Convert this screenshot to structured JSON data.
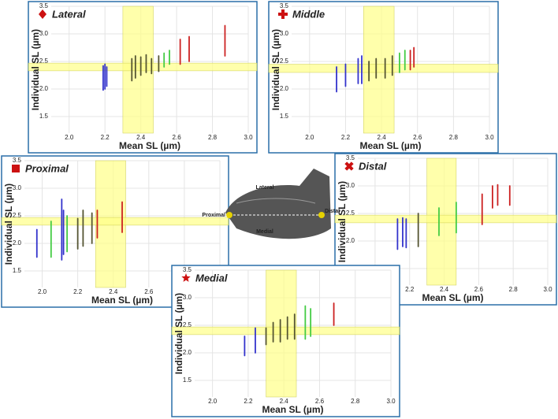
{
  "chart_data": [
    {
      "type": "range",
      "title": "Lateral",
      "marker": "diamond",
      "xlabel": "Mean SL (µm)",
      "ylabel": "Individual SL (µm)",
      "xlim": [
        1.9,
        3.0
      ],
      "ylim": [
        1.2,
        3.5
      ],
      "grid": true,
      "xticks": [
        {
          "value": 2,
          "label": "2.0"
        },
        2.2,
        2.4,
        2.6,
        2.8,
        {
          "value": 3,
          "label": "3.0"
        }
      ],
      "yticks": [
        1.5,
        {
          "value": 2,
          "label": "2.0"
        },
        2.5,
        {
          "value": 3,
          "label": "3.0"
        },
        3.5
      ],
      "xband": [
        2.3,
        2.47
      ],
      "yband": [
        2.33,
        2.47
      ],
      "series": [
        {
          "color": "#3333cc",
          "x": [
            2.19,
            2.2,
            2.21
          ],
          "low": [
            1.98,
            2.0,
            2.05
          ],
          "high": [
            2.42,
            2.45,
            2.4
          ]
        },
        {
          "color": "#555533",
          "x": [
            2.35,
            2.37,
            2.4,
            2.43,
            2.46,
            2.5
          ],
          "low": [
            2.15,
            2.2,
            2.25,
            2.3,
            2.28,
            2.32
          ],
          "high": [
            2.55,
            2.6,
            2.58,
            2.62,
            2.55,
            2.6
          ]
        },
        {
          "color": "#44cc44",
          "x": [
            2.53,
            2.56
          ],
          "low": [
            2.4,
            2.45
          ],
          "high": [
            2.65,
            2.7
          ]
        },
        {
          "color": "#cc2222",
          "x": [
            2.62,
            2.67,
            2.87
          ],
          "low": [
            2.45,
            2.5,
            2.6
          ],
          "high": [
            2.9,
            2.95,
            3.15
          ]
        }
      ]
    },
    {
      "type": "range",
      "title": "Middle",
      "marker": "plus",
      "xlabel": "Mean SL (µm)",
      "ylabel": "Individual SL (µm)",
      "xlim": [
        1.9,
        3.0
      ],
      "ylim": [
        1.2,
        3.5
      ],
      "grid": true,
      "xticks": [
        {
          "value": 2,
          "label": "2.0"
        },
        2.2,
        2.4,
        2.6,
        2.8,
        {
          "value": 3,
          "label": "3.0"
        }
      ],
      "yticks": [
        1.5,
        {
          "value": 2,
          "label": "2.0"
        },
        2.5,
        {
          "value": 3,
          "label": "3.0"
        },
        3.5
      ],
      "xband": [
        2.3,
        2.47
      ],
      "yband": [
        2.3,
        2.45
      ],
      "series": [
        {
          "color": "#3333cc",
          "x": [
            2.15,
            2.2,
            2.27,
            2.29
          ],
          "low": [
            1.95,
            2.05,
            2.1,
            2.1
          ],
          "high": [
            2.4,
            2.45,
            2.55,
            2.6
          ]
        },
        {
          "color": "#555533",
          "x": [
            2.33,
            2.37,
            2.42,
            2.46
          ],
          "low": [
            2.15,
            2.2,
            2.2,
            2.25
          ],
          "high": [
            2.5,
            2.55,
            2.55,
            2.6
          ]
        },
        {
          "color": "#44cc44",
          "x": [
            2.5,
            2.53
          ],
          "low": [
            2.3,
            2.35
          ],
          "high": [
            2.65,
            2.7
          ]
        },
        {
          "color": "#cc2222",
          "x": [
            2.56,
            2.58
          ],
          "low": [
            2.35,
            2.4
          ],
          "high": [
            2.7,
            2.75
          ]
        }
      ]
    },
    {
      "type": "range",
      "title": "Proximal",
      "marker": "square",
      "xlabel": "Mean SL (µm)",
      "ylabel": "Individual SL (µm)",
      "xlim": [
        1.9,
        3.0
      ],
      "ylim": [
        1.2,
        3.5
      ],
      "grid": true,
      "xticks": [
        {
          "value": 2,
          "label": "2.0"
        },
        2.2,
        2.4,
        2.6,
        2.8,
        {
          "value": 3,
          "label": "3.0"
        }
      ],
      "yticks": [
        1.5,
        {
          "value": 2,
          "label": "2.0"
        },
        2.5,
        {
          "value": 3,
          "label": "3.0"
        },
        3.5
      ],
      "xband": [
        2.3,
        2.47
      ],
      "yband": [
        2.33,
        2.47
      ],
      "series": [
        {
          "color": "#3333cc",
          "x": [
            1.97,
            2.11,
            2.12
          ],
          "low": [
            1.75,
            1.7,
            1.8
          ],
          "high": [
            2.25,
            2.8,
            2.6
          ]
        },
        {
          "color": "#44cc44",
          "x": [
            2.05,
            2.14
          ],
          "low": [
            1.75,
            1.85
          ],
          "high": [
            2.4,
            2.5
          ]
        },
        {
          "color": "#555533",
          "x": [
            2.2,
            2.23,
            2.28
          ],
          "low": [
            1.9,
            1.95,
            2.0
          ],
          "high": [
            2.45,
            2.6,
            2.55
          ]
        },
        {
          "color": "#cc2222",
          "x": [
            2.31,
            2.45
          ],
          "low": [
            2.1,
            2.2
          ],
          "high": [
            2.6,
            2.75
          ]
        }
      ]
    },
    {
      "type": "range",
      "title": "Distal",
      "marker": "x",
      "xlabel": "Mean SL (µm)",
      "ylabel": "Individual SL (µm)",
      "xlim": [
        1.9,
        3.0
      ],
      "ylim": [
        1.2,
        3.5
      ],
      "grid": true,
      "xticks": [
        {
          "value": 2,
          "label": "2.0"
        },
        2.2,
        2.4,
        2.6,
        2.8,
        {
          "value": 3,
          "label": "3.0"
        }
      ],
      "yticks": [
        1.5,
        {
          "value": 2,
          "label": "2.0"
        },
        2.5,
        {
          "value": 3,
          "label": "3.0"
        },
        3.5
      ],
      "xband": [
        2.3,
        2.47
      ],
      "yband": [
        2.33,
        2.47
      ],
      "series": [
        {
          "color": "#3333cc",
          "x": [
            2.13,
            2.16,
            2.18
          ],
          "low": [
            1.85,
            1.9,
            1.88
          ],
          "high": [
            2.4,
            2.42,
            2.4
          ]
        },
        {
          "color": "#555533",
          "x": [
            2.25
          ],
          "low": [
            1.9
          ],
          "high": [
            2.5
          ]
        },
        {
          "color": "#44cc44",
          "x": [
            2.37,
            2.47
          ],
          "low": [
            2.1,
            2.15
          ],
          "high": [
            2.6,
            2.7
          ]
        },
        {
          "color": "#cc2222",
          "x": [
            2.62,
            2.68,
            2.71,
            2.78
          ],
          "low": [
            2.3,
            2.6,
            2.65,
            2.65
          ],
          "high": [
            2.85,
            3.0,
            3.02,
            3.0
          ]
        }
      ]
    },
    {
      "type": "range",
      "title": "Medial",
      "marker": "star",
      "xlabel": "Mean SL (µm)",
      "ylabel": "Individual SL (µm)",
      "xlim": [
        1.9,
        3.0
      ],
      "ylim": [
        1.2,
        3.5
      ],
      "grid": true,
      "xticks": [
        {
          "value": 2,
          "label": "2.0"
        },
        2.2,
        2.4,
        2.6,
        2.8,
        {
          "value": 3,
          "label": "3.0"
        }
      ],
      "yticks": [
        1.5,
        {
          "value": 2,
          "label": "2.0"
        },
        2.5,
        {
          "value": 3,
          "label": "3.0"
        },
        3.5
      ],
      "xband": [
        2.3,
        2.47
      ],
      "yband": [
        2.33,
        2.47
      ],
      "series": [
        {
          "color": "#3333cc",
          "x": [
            2.18,
            2.24
          ],
          "low": [
            1.95,
            2.0
          ],
          "high": [
            2.3,
            2.45
          ]
        },
        {
          "color": "#555533",
          "x": [
            2.3,
            2.34,
            2.38,
            2.42,
            2.46
          ],
          "low": [
            2.15,
            2.2,
            2.2,
            2.25,
            2.25
          ],
          "high": [
            2.45,
            2.55,
            2.6,
            2.65,
            2.7
          ]
        },
        {
          "color": "#44cc44",
          "x": [
            2.52,
            2.55
          ],
          "low": [
            2.25,
            2.3
          ],
          "high": [
            2.85,
            2.8
          ]
        },
        {
          "color": "#cc2222",
          "x": [
            2.68
          ],
          "low": [
            2.5
          ],
          "high": [
            2.9
          ]
        }
      ]
    }
  ],
  "inset": {
    "lateral": "Lateral",
    "medial": "Medial",
    "proximal": "Proximal",
    "distal": "Distal"
  }
}
